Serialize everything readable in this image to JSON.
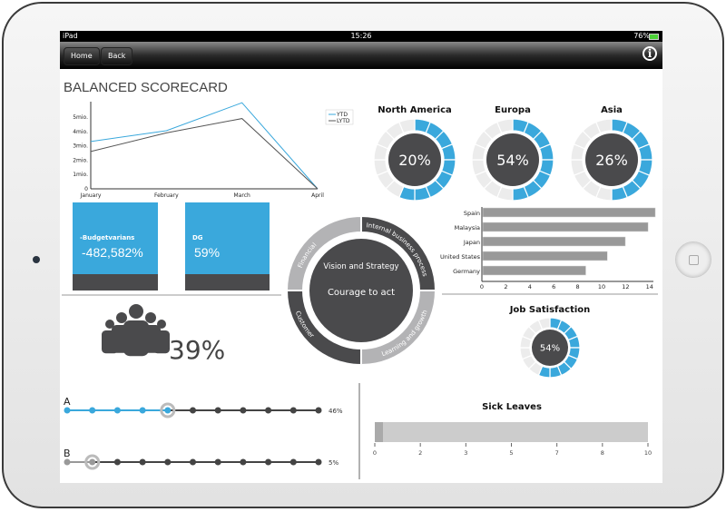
{
  "status_bar": {
    "device": "iPad",
    "time": "15:26",
    "battery": "76%"
  },
  "nav": {
    "home_label": "Home",
    "back_label": "Back",
    "info_icon": "info-icon"
  },
  "page_title": "BALANCED SCORECARD",
  "colors": {
    "accent": "#3aa8dc",
    "dark": "#4a4a4c",
    "light": "#b3b3b5",
    "track": "#ececec"
  },
  "chart_data": [
    {
      "type": "line",
      "categories": [
        "January",
        "February",
        "March",
        "April"
      ],
      "y_ticks": [
        "0",
        "1mio.",
        "2mio.",
        "3mio.",
        "4mio.",
        "5mio."
      ],
      "ylim": [
        0,
        6
      ],
      "series": [
        {
          "name": "YTD",
          "values": [
            3.3,
            4.05,
            6.0,
            0
          ],
          "color": "#3aa8dc"
        },
        {
          "name": "LYTD",
          "values": [
            2.6,
            3.9,
            4.9,
            0
          ],
          "color": "#555555"
        }
      ],
      "legend": "top-right"
    },
    {
      "type": "bar",
      "orientation": "horizontal",
      "categories": [
        "Spain",
        "Malaysia",
        "Japan",
        "United States",
        "Germany"
      ],
      "values": [
        14.4,
        13.8,
        11.9,
        10.4,
        8.6
      ],
      "x_ticks": [
        "0",
        "2",
        "4",
        "6",
        "8",
        "10",
        "12",
        "14"
      ],
      "xlim": [
        0,
        14.4
      ]
    },
    {
      "type": "bar",
      "title": "Sick Leaves",
      "value": 0.2,
      "xlim": [
        0,
        10
      ],
      "x_ticks": [
        "0",
        "2",
        "3",
        "5",
        "7",
        "8",
        "10"
      ]
    }
  ],
  "regions": [
    {
      "name": "North America",
      "value": "20%",
      "filled_segments": 9
    },
    {
      "name": "Europa",
      "value": "54%",
      "filled_segments": 8
    },
    {
      "name": "Asia",
      "value": "26%",
      "filled_segments": 8
    }
  ],
  "job_satisfaction": {
    "title": "Job Satisfaction",
    "value": "54%",
    "filled_segments": 9
  },
  "kpis": [
    {
      "label": "-Budgetvarians",
      "value": "-482,582%"
    },
    {
      "label": "DG",
      "value": "59%"
    }
  ],
  "strategy": {
    "title": "Vision and Strategy",
    "subtitle": "Courage to act",
    "segments": [
      "Financial",
      "Internal business process",
      "Learning and growth",
      "Customer"
    ]
  },
  "people": {
    "icon": "people-group-icon",
    "value": "39%"
  },
  "sliders": [
    {
      "label": "A",
      "value": "46%",
      "position": 4
    },
    {
      "label": "B",
      "value": "5%",
      "position": 1
    }
  ]
}
